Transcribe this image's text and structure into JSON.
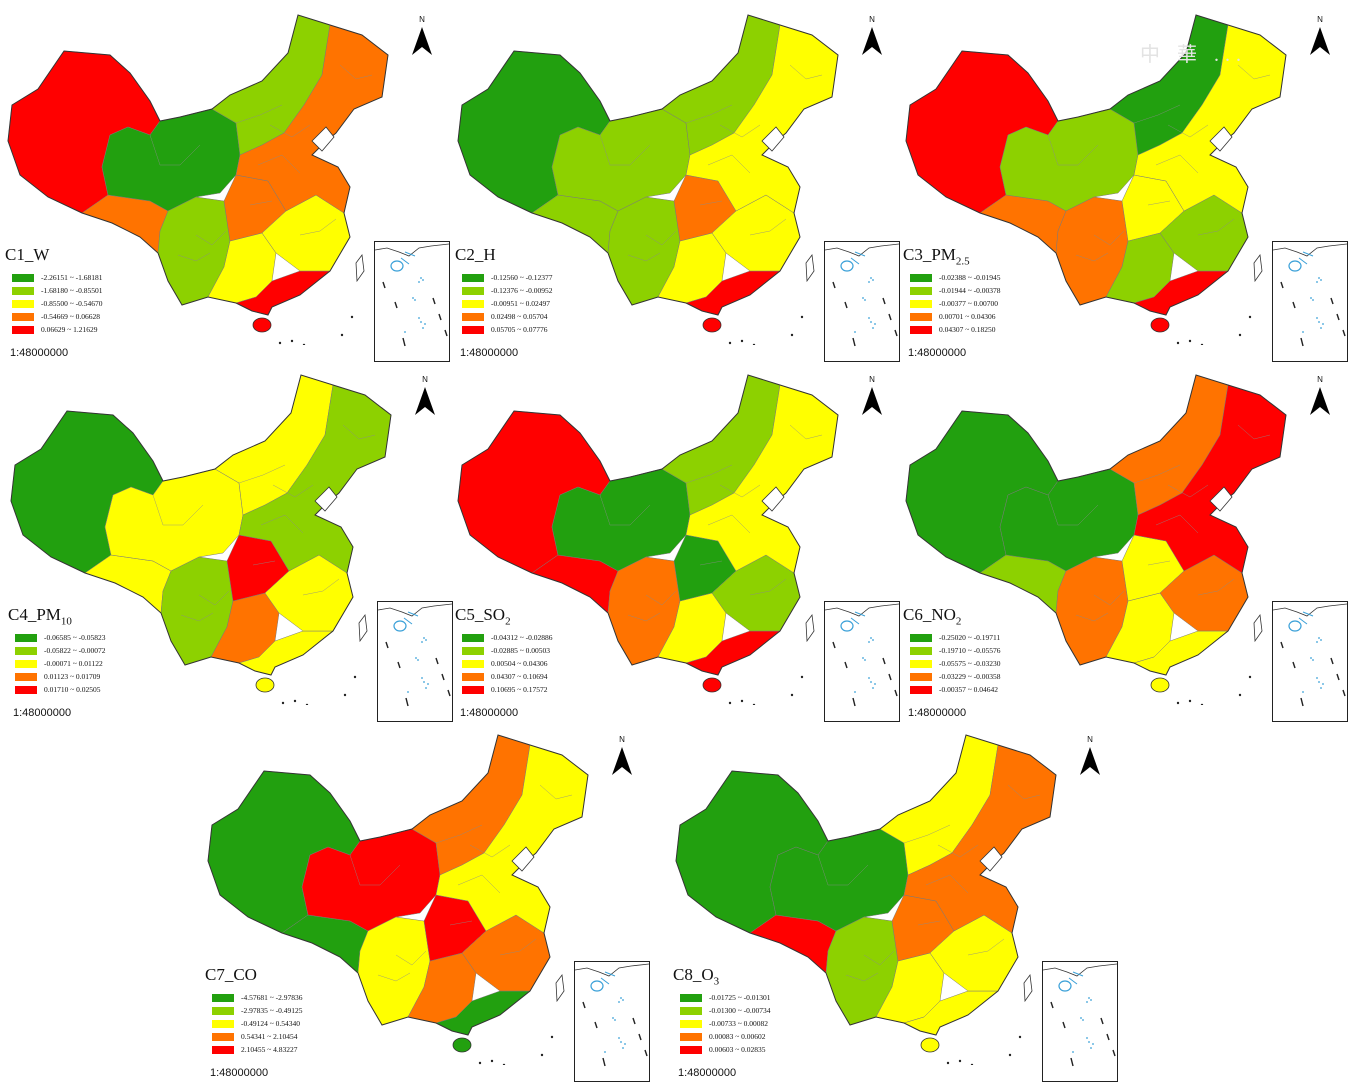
{
  "colors": {
    "dark_green": "#22A00F",
    "light_green": "#8DD100",
    "yellow": "#FFFF00",
    "orange": "#FF7300",
    "red": "#FF0000"
  },
  "watermark": "中 華 ...",
  "north_label": "N",
  "scale_text": "1:48000000",
  "panels": [
    {
      "title_base": "C1_W",
      "title_sub": "",
      "colors": [
        "red",
        "orange",
        "dark_green",
        "light_green",
        "yellow",
        "orange",
        "red",
        "yellow",
        "light_green",
        "orange"
      ],
      "legend": [
        {
          "label": "-2.26151 ~ -1.68181",
          "color": "#22A00F"
        },
        {
          "label": "-1.68180 ~ -0.85501",
          "color": "#8DD100"
        },
        {
          "label": "-0.85500 ~ -0.54670",
          "color": "#FFFF00"
        },
        {
          "label": "-0.54669 ~ 0.06628",
          "color": "#FF7300"
        },
        {
          "label": "0.06629 ~ 1.21629",
          "color": "#FF0000"
        }
      ]
    },
    {
      "title_base": "C2_H",
      "title_sub": "",
      "colors": [
        "dark_green",
        "light_green",
        "light_green",
        "light_green",
        "yellow",
        "orange",
        "red",
        "yellow",
        "light_green",
        "yellow"
      ],
      "legend": [
        {
          "label": "-0.12560 ~ -0.12377",
          "color": "#22A00F"
        },
        {
          "label": "-0.12376 ~ -0.00952",
          "color": "#8DD100"
        },
        {
          "label": "-0.00951 ~ 0.02497",
          "color": "#FFFF00"
        },
        {
          "label": "0.02498 ~ 0.05704",
          "color": "#FF7300"
        },
        {
          "label": "0.05705 ~ 0.07776",
          "color": "#FF0000"
        }
      ]
    },
    {
      "title_base": "C3_PM",
      "title_sub": "2.5",
      "colors": [
        "red",
        "orange",
        "light_green",
        "orange",
        "light_green",
        "yellow",
        "red",
        "light_green",
        "dark_green",
        "yellow"
      ],
      "legend": [
        {
          "label": "-0.02388 ~ -0.01945",
          "color": "#22A00F"
        },
        {
          "label": "-0.01944 ~ -0.00378",
          "color": "#8DD100"
        },
        {
          "label": "-0.00377 ~ 0.00700",
          "color": "#FFFF00"
        },
        {
          "label": "0.00701 ~ 0.04306",
          "color": "#FF7300"
        },
        {
          "label": "0.04307 ~ 0.18250",
          "color": "#FF0000"
        }
      ]
    },
    {
      "title_base": "C4_PM",
      "title_sub": "10",
      "colors": [
        "dark_green",
        "yellow",
        "yellow",
        "light_green",
        "orange",
        "red",
        "yellow",
        "yellow",
        "yellow",
        "light_green"
      ],
      "legend": [
        {
          "label": "-0.06585 ~ -0.05823",
          "color": "#22A00F"
        },
        {
          "label": "-0.05822 ~ -0.00072",
          "color": "#8DD100"
        },
        {
          "label": "-0.00071 ~ 0.01122",
          "color": "#FFFF00"
        },
        {
          "label": "0.01123 ~ 0.01709",
          "color": "#FF7300"
        },
        {
          "label": "0.01710 ~ 0.02505",
          "color": "#FF0000"
        }
      ]
    },
    {
      "title_base": "C5_SO",
      "title_sub": "2",
      "colors": [
        "red",
        "red",
        "dark_green",
        "orange",
        "yellow",
        "dark_green",
        "red",
        "light_green",
        "light_green",
        "yellow"
      ],
      "legend": [
        {
          "label": "-0.04312 ~ -0.02886",
          "color": "#22A00F"
        },
        {
          "label": "-0.02885 ~ 0.00503",
          "color": "#8DD100"
        },
        {
          "label": "0.00504 ~ 0.04306",
          "color": "#FFFF00"
        },
        {
          "label": "0.04307 ~ 0.10694",
          "color": "#FF7300"
        },
        {
          "label": "0.10695 ~ 0.17572",
          "color": "#FF0000"
        }
      ]
    },
    {
      "title_base": "C6_NO",
      "title_sub": "2",
      "colors": [
        "dark_green",
        "light_green",
        "dark_green",
        "orange",
        "yellow",
        "yellow",
        "yellow",
        "orange",
        "orange",
        "red"
      ],
      "legend": [
        {
          "label": "-0.25020 ~ -0.19711",
          "color": "#22A00F"
        },
        {
          "label": "-0.19710 ~ -0.05576",
          "color": "#8DD100"
        },
        {
          "label": "-0.05575 ~ -0.03230",
          "color": "#FFFF00"
        },
        {
          "label": "-0.03229 ~ -0.00358",
          "color": "#FF7300"
        },
        {
          "label": "-0.00357 ~ 0.04642",
          "color": "#FF0000"
        }
      ]
    },
    {
      "title_base": "C7_CO",
      "title_sub": "",
      "colors": [
        "dark_green",
        "dark_green",
        "red",
        "yellow",
        "orange",
        "red",
        "dark_green",
        "orange",
        "orange",
        "yellow"
      ],
      "legend": [
        {
          "label": "-4.57681 ~ -2.97836",
          "color": "#22A00F"
        },
        {
          "label": "-2.97835 ~ -0.49125",
          "color": "#8DD100"
        },
        {
          "label": "-0.49124 ~ 0.54340",
          "color": "#FFFF00"
        },
        {
          "label": "0.54341 ~ 2.10454",
          "color": "#FF7300"
        },
        {
          "label": "2.10455 ~ 4.83227",
          "color": "#FF0000"
        }
      ]
    },
    {
      "title_base": "C8_O",
      "title_sub": "3",
      "colors": [
        "dark_green",
        "red",
        "dark_green",
        "light_green",
        "yellow",
        "orange",
        "yellow",
        "yellow",
        "yellow",
        "orange"
      ],
      "legend": [
        {
          "label": "-0.01725 ~ -0.01301",
          "color": "#22A00F"
        },
        {
          "label": "-0.01300 ~ -0.00734",
          "color": "#8DD100"
        },
        {
          "label": "-0.00733 ~ 0.00082",
          "color": "#FFFF00"
        },
        {
          "label": "0.00083 ~ 0.00602",
          "color": "#FF7300"
        },
        {
          "label": "0.00603 ~ 0.02835",
          "color": "#FF0000"
        }
      ]
    }
  ]
}
